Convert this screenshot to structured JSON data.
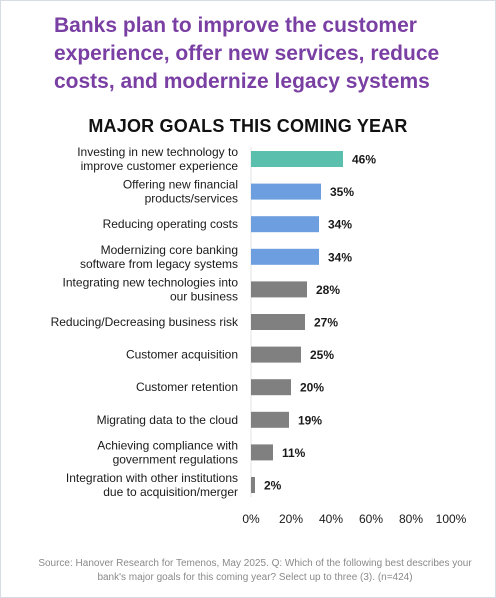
{
  "colors": {
    "headline": "#7a3fa3",
    "bar_top": "#5bbfad",
    "bar_blue": "#6d9ee0",
    "bar_gray": "#808080"
  },
  "headline": "Banks plan to improve the customer experience, offer new services, reduce costs, and modernize legacy systems",
  "source_note": "Source: Hanover Research for Temenos, May 2025. Q: Which of the following best describes your bank's major goals for this coming year? Select up to three (3). (n=424)",
  "chart_data": {
    "type": "bar",
    "orientation": "horizontal",
    "title": "MAJOR GOALS THIS COMING YEAR",
    "categories": [
      [
        "Investing in new technology to",
        "improve customer experience"
      ],
      [
        "Offering new financial",
        "products/services"
      ],
      [
        "Reducing operating costs"
      ],
      [
        "Modernizing core banking",
        "software from legacy systems"
      ],
      [
        "Integrating new technologies into",
        "our business"
      ],
      [
        "Reducing/Decreasing business risk"
      ],
      [
        "Customer acquisition"
      ],
      [
        "Customer retention"
      ],
      [
        "Migrating data to the cloud"
      ],
      [
        "Achieving compliance with",
        "government regulations"
      ],
      [
        "Integration with other institutions",
        "due to acquisition/merger"
      ]
    ],
    "values": [
      46,
      35,
      34,
      34,
      28,
      27,
      25,
      20,
      19,
      11,
      2
    ],
    "value_labels": [
      "46%",
      "35%",
      "34%",
      "34%",
      "28%",
      "27%",
      "25%",
      "20%",
      "19%",
      "11%",
      "2%"
    ],
    "bar_color_keys": [
      "bar_top",
      "bar_blue",
      "bar_blue",
      "bar_blue",
      "bar_gray",
      "bar_gray",
      "bar_gray",
      "bar_gray",
      "bar_gray",
      "bar_gray",
      "bar_gray"
    ],
    "x_ticks": [
      0,
      20,
      40,
      60,
      80,
      100
    ],
    "x_tick_labels": [
      "0%",
      "20%",
      "40%",
      "60%",
      "80%",
      "100%"
    ],
    "xlim": [
      0,
      100
    ],
    "grid": false,
    "legend": "none"
  }
}
